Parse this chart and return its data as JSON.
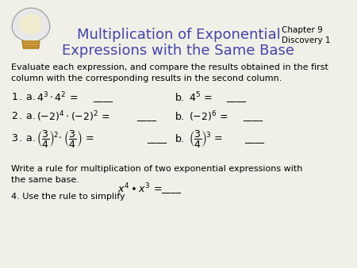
{
  "bg_color": "#f0efe8",
  "title_line1": "Multiplication of Exponential",
  "title_line2": "Expressions with the Same Base",
  "title_color": "#4444aa",
  "title_fontsize": 13,
  "chapter_text": "Chapter 9\nDiscovery 1",
  "chapter_fontsize": 7.5,
  "intro_text": "Evaluate each expression, and compare the results obtained in the first\ncolumn with the corresponding results in the second column.",
  "intro_fontsize": 8,
  "body_fontsize": 9,
  "blank": "____",
  "write_rule_text": "Write a rule for multiplication of two exponential expressions with\nthe same base.",
  "simplify_text": "4. Use the rule to simplify",
  "fig_width": 4.5,
  "fig_height": 3.38,
  "dpi": 100
}
